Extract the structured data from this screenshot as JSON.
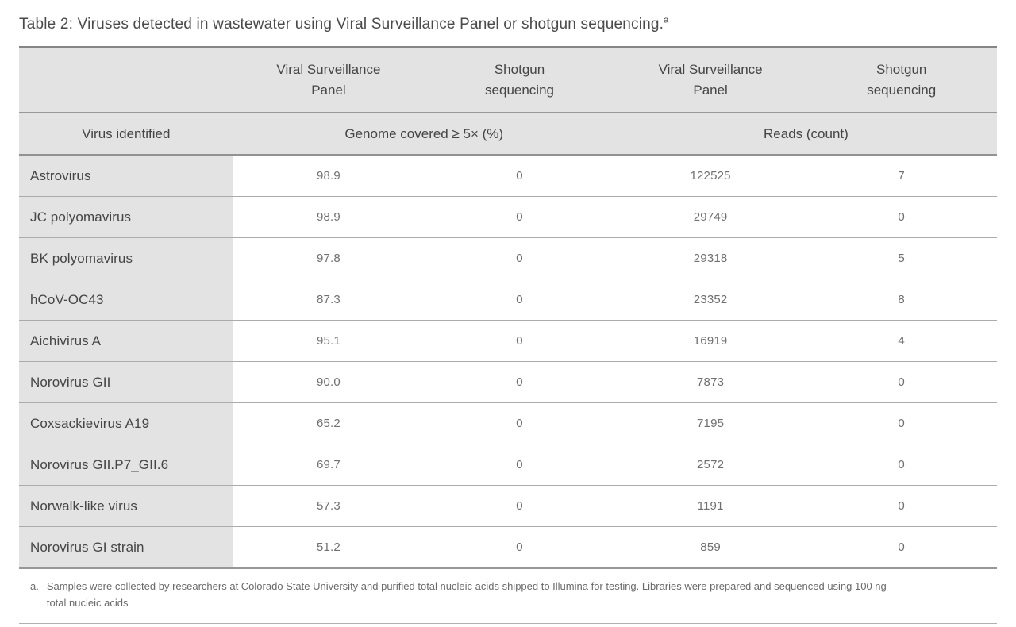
{
  "title": {
    "text": "Table 2: Viruses detected in wastewater using Viral Surveillance Panel or shotgun sequencing.",
    "footnote_ref": "a"
  },
  "table": {
    "method_headers": [
      {
        "line1": "Viral Surveillance",
        "line2": "Panel"
      },
      {
        "line1": "Shotgun",
        "line2": "sequencing"
      },
      {
        "line1": "Viral Surveillance",
        "line2": "Panel"
      },
      {
        "line1": "Shotgun",
        "line2": "sequencing"
      }
    ],
    "row_header": "Virus identified",
    "group_headers": [
      "Genome covered ≥ 5× (%)",
      "Reads (count)"
    ],
    "rows": [
      {
        "virus": "Astrovirus",
        "genome_vsp": "98.9",
        "genome_shotgun": "0",
        "reads_vsp": "122525",
        "reads_shotgun": "7"
      },
      {
        "virus": "JC polyomavirus",
        "genome_vsp": "98.9",
        "genome_shotgun": "0",
        "reads_vsp": "29749",
        "reads_shotgun": "0"
      },
      {
        "virus": "BK polyomavirus",
        "genome_vsp": "97.8",
        "genome_shotgun": "0",
        "reads_vsp": "29318",
        "reads_shotgun": "5"
      },
      {
        "virus": "hCoV-OC43",
        "genome_vsp": "87.3",
        "genome_shotgun": "0",
        "reads_vsp": "23352",
        "reads_shotgun": "8"
      },
      {
        "virus": "Aichivirus A",
        "genome_vsp": "95.1",
        "genome_shotgun": "0",
        "reads_vsp": "16919",
        "reads_shotgun": "4"
      },
      {
        "virus": "Norovirus GII",
        "genome_vsp": "90.0",
        "genome_shotgun": "0",
        "reads_vsp": "7873",
        "reads_shotgun": "0"
      },
      {
        "virus": "Coxsackievirus A19",
        "genome_vsp": "65.2",
        "genome_shotgun": "0",
        "reads_vsp": "7195",
        "reads_shotgun": "0"
      },
      {
        "virus": "Norovirus GII.P7_GII.6",
        "genome_vsp": "69.7",
        "genome_shotgun": "0",
        "reads_vsp": "2572",
        "reads_shotgun": "0"
      },
      {
        "virus": "Norwalk-like virus",
        "genome_vsp": "57.3",
        "genome_shotgun": "0",
        "reads_vsp": "1191",
        "reads_shotgun": "0"
      },
      {
        "virus": "Norovirus GI strain",
        "genome_vsp": "51.2",
        "genome_shotgun": "0",
        "reads_vsp": "859",
        "reads_shotgun": "0"
      }
    ]
  },
  "footnote": {
    "marker": "a.",
    "text": "Samples were collected by researchers at Colorado State University and purified total nucleic acids shipped to Illumina for testing. Libraries were prepared and sequenced using 100 ng total nucleic acids"
  },
  "colors": {
    "header_bg": "#e3e3e4",
    "row_label_bg": "#e3e3e4",
    "title_text": "#4a4a4a",
    "header_text": "#454545",
    "value_text": "#6f6f6f",
    "footnote_text": "#6a6a6a"
  }
}
